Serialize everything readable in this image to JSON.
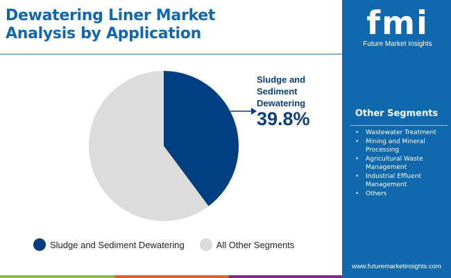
{
  "chart_data": {
    "type": "pie",
    "title": "Dewatering Liner Market Analysis by Application",
    "slices": [
      {
        "label": "Sludge and Sediment Dewatering",
        "value": 39.8,
        "color": "#003f7f"
      },
      {
        "label": "All Other Segments",
        "value": 60.2,
        "color": "#dcdcdc"
      }
    ],
    "callout": {
      "label": "Sludge and Sediment Dewatering",
      "value": "39.8%"
    },
    "legend_position": "bottom"
  },
  "brand": {
    "logo": "fmi",
    "name": "Future Market Insights",
    "url": "www.futuremarketinsights.com"
  },
  "sidebar": {
    "heading": "Other Segments",
    "items": [
      "Wastewater Treatment",
      "Mining and Mineral Processing",
      "Agricultural Waste Management",
      "Industrial Effluent Management",
      "Others"
    ]
  },
  "colors": {
    "accent": "#1068ad",
    "bars": [
      "#8bbd45",
      "#e0622a",
      "#7e2e8a"
    ]
  }
}
